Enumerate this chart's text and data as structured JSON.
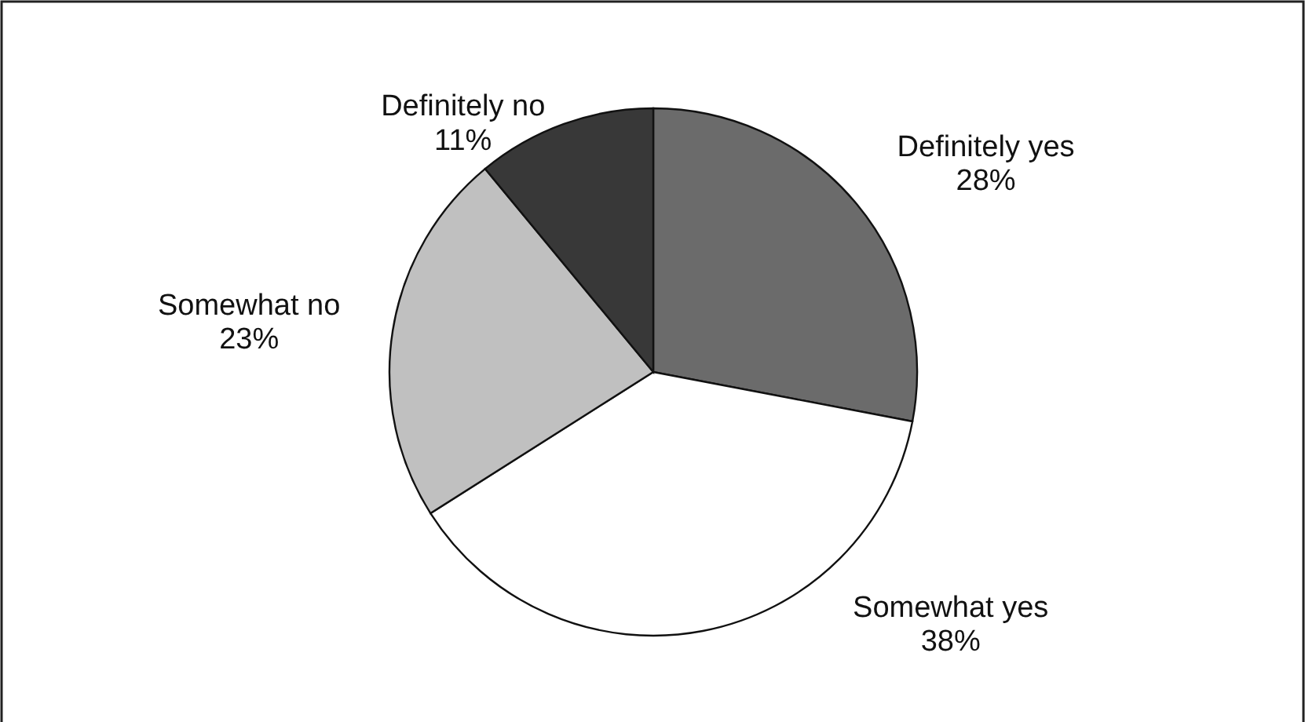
{
  "chart_data": {
    "type": "pie",
    "categories": [
      "Definitely yes",
      "Somewhat yes",
      "Somewhat no",
      "Definitely no"
    ],
    "values": [
      28,
      38,
      23,
      11
    ],
    "colors": [
      "#6b6b6b",
      "#ffffff",
      "#c0c0c0",
      "#383838"
    ],
    "value_labels": [
      "28%",
      "38%",
      "23%",
      "11%"
    ]
  }
}
